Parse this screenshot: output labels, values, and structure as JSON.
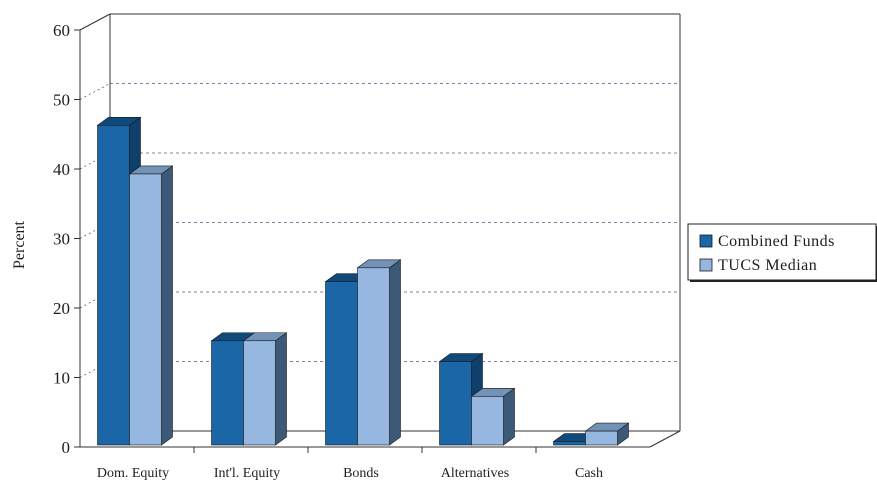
{
  "chart_data": {
    "type": "bar",
    "ylabel": "Percent",
    "ylim": [
      0,
      60
    ],
    "yticks": [
      0,
      10,
      20,
      30,
      40,
      50,
      60
    ],
    "grid": true,
    "legend_position": "right",
    "categories": [
      "Dom. Equity",
      "Int'l. Equity",
      "Bonds",
      "Alternatives",
      "Cash"
    ],
    "series": [
      {
        "name": "Combined Funds",
        "values": [
          46,
          15,
          23.5,
          12,
          0.5
        ]
      },
      {
        "name": "TUCS Median",
        "values": [
          39,
          15,
          25.5,
          7,
          2
        ]
      }
    ]
  },
  "colors": {
    "series": [
      "#1b66a6",
      "#95b7e0"
    ],
    "series_side": [
      "#0f3f6b",
      "#3c5a78"
    ],
    "series_top": [
      "#0e4a7c",
      "#7392b8"
    ],
    "axis": "#333333",
    "grid": "#5a5a8a"
  }
}
